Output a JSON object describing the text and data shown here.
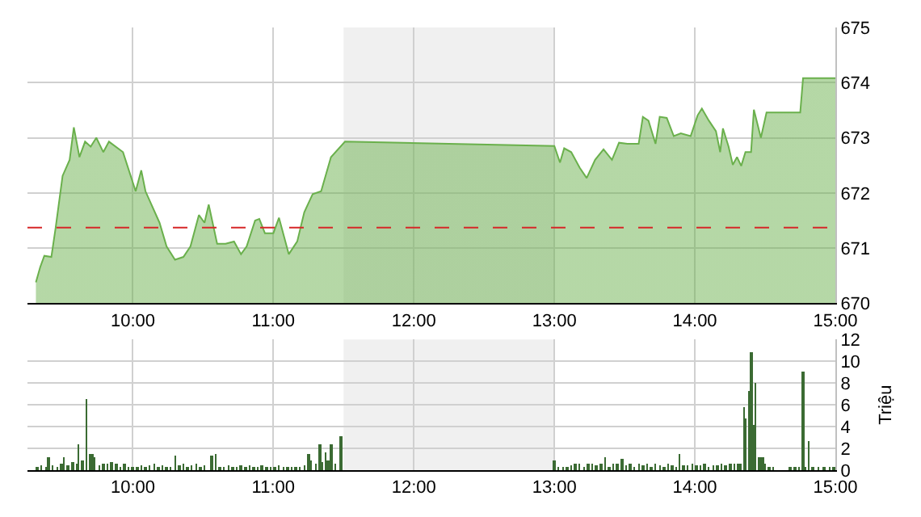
{
  "chart_data": [
    {
      "type": "area",
      "xlim": [
        9.25,
        15
      ],
      "xticks": [
        {
          "value": 10,
          "label": "10:00"
        },
        {
          "value": 11,
          "label": "11:00"
        },
        {
          "value": 12,
          "label": "12:00"
        },
        {
          "value": 13,
          "label": "13:00"
        },
        {
          "value": 14,
          "label": "14:00"
        },
        {
          "value": 15,
          "label": "15:00"
        }
      ],
      "ylim": [
        670,
        675
      ],
      "yticks": [
        670,
        671,
        672,
        673,
        674,
        675
      ],
      "grid": true,
      "x": [
        9.31,
        9.34,
        9.37,
        9.42,
        9.45,
        9.5,
        9.55,
        9.58,
        9.62,
        9.66,
        9.7,
        9.74,
        9.79,
        9.83,
        9.93,
        10.02,
        10.06,
        10.09,
        10.19,
        10.24,
        10.3,
        10.36,
        10.41,
        10.47,
        10.51,
        10.54,
        10.6,
        10.66,
        10.72,
        10.77,
        10.81,
        10.87,
        10.9,
        10.94,
        11.0,
        11.04,
        11.11,
        11.17,
        11.22,
        11.28,
        11.34,
        11.41,
        11.51,
        13.0,
        13.04,
        13.07,
        13.12,
        13.18,
        13.23,
        13.29,
        13.35,
        13.41,
        13.46,
        13.52,
        13.6,
        13.63,
        13.67,
        13.72,
        13.75,
        13.8,
        13.85,
        13.9,
        13.97,
        14.02,
        14.05,
        14.1,
        14.15,
        14.18,
        14.2,
        14.24,
        14.27,
        14.3,
        14.33,
        14.36,
        14.4,
        14.42,
        14.47,
        14.51,
        14.75,
        14.77,
        15.0
      ],
      "series": [
        {
          "color": "#6ab04c",
          "values": [
            670.38,
            670.65,
            670.86,
            670.84,
            671.36,
            672.31,
            672.6,
            673.19,
            672.65,
            672.93,
            672.84,
            673.0,
            672.74,
            672.93,
            672.74,
            672.03,
            672.41,
            672.03,
            671.46,
            671.03,
            670.79,
            670.84,
            671.03,
            671.6,
            671.46,
            671.79,
            671.08,
            671.08,
            671.12,
            670.89,
            671.03,
            671.5,
            671.53,
            671.27,
            671.27,
            671.55,
            670.89,
            671.12,
            671.65,
            671.98,
            672.03,
            672.65,
            672.93,
            672.85,
            672.55,
            672.81,
            672.74,
            672.46,
            672.27,
            672.6,
            672.79,
            672.6,
            672.91,
            672.89,
            672.89,
            673.38,
            673.31,
            672.89,
            673.38,
            673.36,
            673.03,
            673.08,
            673.03,
            673.41,
            673.53,
            673.31,
            673.12,
            672.74,
            673.17,
            672.84,
            672.51,
            672.65,
            672.49,
            672.74,
            672.74,
            673.51,
            673.0,
            673.46,
            673.46,
            674.08,
            674.08
          ]
        }
      ],
      "ref_lines": [
        {
          "axis": "y",
          "value": 671.37,
          "color": "#d62728",
          "line_style": "dashed"
        }
      ],
      "bands": [
        {
          "axis": "x",
          "from": 11.5,
          "to": 13,
          "color": "#f0f0f0"
        }
      ]
    },
    {
      "type": "bar",
      "ylabel": "Triệu",
      "xlim": [
        9.25,
        15
      ],
      "xticks": [
        {
          "value": 10,
          "label": "10:00"
        },
        {
          "value": 11,
          "label": "11:00"
        },
        {
          "value": 12,
          "label": "12:00"
        },
        {
          "value": 13,
          "label": "13:00"
        },
        {
          "value": 14,
          "label": "14:00"
        },
        {
          "value": 15,
          "label": "15:00"
        }
      ],
      "ylim": [
        0,
        12
      ],
      "yticks": [
        0,
        2,
        4,
        6,
        8,
        10,
        12
      ],
      "grid": true,
      "x": [
        9.32,
        9.35,
        9.38,
        9.4,
        9.43,
        9.46,
        9.49,
        9.51,
        9.54,
        9.57,
        9.6,
        9.615,
        9.64,
        9.668,
        9.69,
        9.71,
        9.73,
        9.76,
        9.79,
        9.82,
        9.85,
        9.88,
        9.91,
        9.94,
        9.97,
        10.0,
        10.03,
        10.06,
        10.09,
        10.12,
        10.15,
        10.18,
        10.21,
        10.24,
        10.27,
        10.3,
        10.33,
        10.36,
        10.39,
        10.42,
        10.45,
        10.48,
        10.51,
        10.56,
        10.59,
        10.62,
        10.65,
        10.68,
        10.71,
        10.74,
        10.77,
        10.8,
        10.83,
        10.86,
        10.89,
        10.92,
        10.95,
        10.98,
        11.01,
        11.04,
        11.07,
        11.1,
        11.13,
        11.16,
        11.19,
        11.22,
        11.25,
        11.27,
        11.3,
        11.33,
        11.35,
        11.37,
        11.39,
        11.41,
        11.44,
        11.48,
        13.0,
        13.03,
        13.06,
        13.09,
        13.12,
        13.15,
        13.18,
        13.21,
        13.24,
        13.27,
        13.3,
        13.33,
        13.36,
        13.39,
        13.42,
        13.45,
        13.48,
        13.51,
        13.54,
        13.57,
        13.6,
        13.63,
        13.66,
        13.69,
        13.72,
        13.75,
        13.78,
        13.81,
        13.84,
        13.87,
        13.89,
        13.92,
        13.95,
        13.98,
        14.01,
        14.04,
        14.07,
        14.1,
        14.13,
        14.16,
        14.19,
        14.22,
        14.25,
        14.28,
        14.31,
        14.33,
        14.35,
        14.36,
        14.39,
        14.4,
        14.42,
        14.43,
        14.46,
        14.48,
        14.5,
        14.53,
        14.56,
        14.68,
        14.71,
        14.74,
        14.77,
        14.79,
        14.81,
        14.84,
        14.88,
        14.92,
        14.96,
        14.99
      ],
      "series": [
        {
          "color": "#3b6b33",
          "values": [
            0.3,
            0.4,
            0.3,
            1.1,
            0.4,
            0.3,
            0.5,
            1.2,
            0.4,
            0.7,
            0.6,
            2.3,
            0.9,
            6.5,
            1.5,
            1.5,
            1.1,
            0.4,
            0.6,
            0.5,
            0.7,
            0.5,
            0.3,
            0.6,
            0.3,
            0.3,
            0.3,
            0.4,
            0.3,
            0.4,
            0.5,
            0.3,
            0.4,
            0.3,
            0.3,
            1.3,
            0.4,
            0.6,
            0.3,
            0.4,
            0.5,
            0.3,
            0.4,
            1.3,
            1.5,
            0.3,
            0.3,
            0.4,
            0.3,
            0.3,
            0.4,
            0.3,
            0.4,
            0.3,
            0.3,
            0.4,
            0.3,
            0.3,
            0.3,
            0.4,
            0.3,
            0.3,
            0.3,
            0.3,
            0.3,
            0.4,
            1.5,
            0.8,
            0.5,
            2.4,
            0.7,
            1.6,
            0.9,
            2.3,
            0.5,
            3.1,
            0.8,
            0.3,
            0.3,
            0.2,
            0.4,
            0.5,
            0.6,
            0.3,
            0.5,
            0.6,
            0.4,
            0.5,
            1.1,
            0.3,
            0.6,
            0.5,
            1.0,
            0.4,
            0.5,
            0.3,
            0.5,
            0.4,
            0.6,
            0.3,
            0.5,
            0.4,
            0.3,
            0.5,
            0.4,
            0.3,
            1.4,
            0.4,
            0.4,
            0.5,
            0.4,
            0.4,
            0.5,
            0.3,
            0.4,
            0.4,
            0.5,
            0.4,
            0.5,
            0.5,
            0.5,
            0.6,
            5.7,
            4.8,
            7.2,
            10.8,
            4.2,
            8.0,
            1.2,
            1.2,
            0.5,
            0.3,
            0.2,
            0.3,
            0.3,
            0.3,
            9.1,
            0.3,
            2.7,
            0.3,
            0.2,
            0.3,
            0.3,
            0.3
          ]
        }
      ],
      "bands": [
        {
          "axis": "x",
          "from": 11.5,
          "to": 13,
          "color": "#f0f0f0"
        }
      ]
    }
  ]
}
